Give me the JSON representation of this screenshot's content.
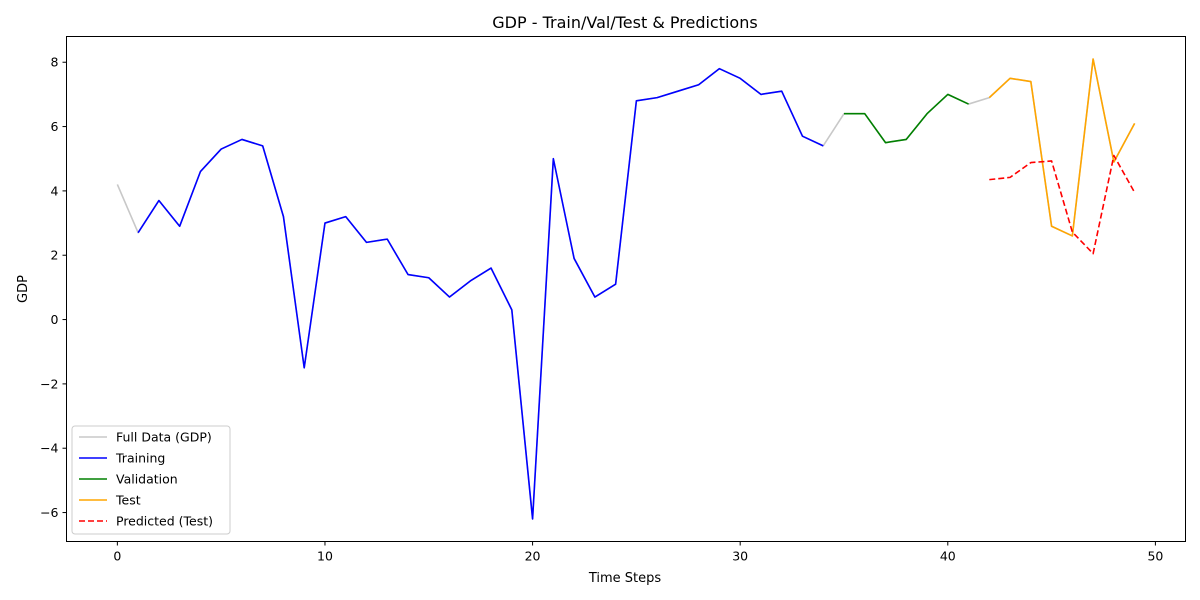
{
  "chart_data": {
    "type": "line",
    "title": "GDP - Train/Val/Test & Predictions",
    "xlabel": "Time Steps",
    "ylabel": "GDP",
    "xlim": [
      -2.45,
      51.45
    ],
    "ylim": [
      -6.9,
      8.8
    ],
    "xticks": [
      0,
      10,
      20,
      30,
      40,
      50
    ],
    "yticks": [
      -6,
      -4,
      -2,
      0,
      2,
      4,
      6,
      8
    ],
    "grid": false,
    "legend_position": "lower-left",
    "series": [
      {
        "name": "Full Data (GDP)",
        "color": "#c8c8c8",
        "dash": "solid",
        "x": [
          0,
          1,
          2,
          3,
          4,
          5,
          6,
          7,
          8,
          9,
          10,
          11,
          12,
          13,
          14,
          15,
          16,
          17,
          18,
          19,
          20,
          21,
          22,
          23,
          24,
          25,
          26,
          27,
          28,
          29,
          30,
          31,
          32,
          33,
          34,
          35,
          36,
          37,
          38,
          39,
          40,
          41,
          42,
          43,
          44,
          45,
          46,
          47,
          48,
          49
        ],
        "values": [
          4.2,
          2.7,
          3.7,
          2.9,
          4.6,
          5.3,
          5.6,
          5.4,
          3.2,
          -1.5,
          3.0,
          3.2,
          2.4,
          2.5,
          1.4,
          1.3,
          0.7,
          1.2,
          1.6,
          0.3,
          -6.2,
          5.0,
          1.9,
          0.7,
          1.1,
          6.8,
          6.9,
          7.1,
          7.3,
          7.8,
          7.5,
          7.0,
          7.1,
          5.7,
          5.4,
          6.4,
          6.4,
          5.5,
          5.6,
          6.4,
          7.0,
          6.7,
          6.9,
          7.5,
          7.4,
          2.9,
          2.6,
          8.1,
          4.9,
          6.1
        ]
      },
      {
        "name": "Training",
        "color": "#0000ff",
        "dash": "solid",
        "x": [
          1,
          2,
          3,
          4,
          5,
          6,
          7,
          8,
          9,
          10,
          11,
          12,
          13,
          14,
          15,
          16,
          17,
          18,
          19,
          20,
          21,
          22,
          23,
          24,
          25,
          26,
          27,
          28,
          29,
          30,
          31,
          32,
          33,
          34
        ],
        "values": [
          2.7,
          3.7,
          2.9,
          4.6,
          5.3,
          5.6,
          5.4,
          3.2,
          -1.5,
          3.0,
          3.2,
          2.4,
          2.5,
          1.4,
          1.3,
          0.7,
          1.2,
          1.6,
          0.3,
          -6.2,
          5.0,
          1.9,
          0.7,
          1.1,
          6.8,
          6.9,
          7.1,
          7.3,
          7.8,
          7.5,
          7.0,
          7.1,
          5.7,
          5.4
        ]
      },
      {
        "name": "Validation",
        "color": "#008000",
        "dash": "solid",
        "x": [
          35,
          36,
          37,
          38,
          39,
          40,
          41
        ],
        "values": [
          6.4,
          6.4,
          5.5,
          5.6,
          6.4,
          7.0,
          6.7
        ]
      },
      {
        "name": "Test",
        "color": "#ffa500",
        "dash": "solid",
        "x": [
          42,
          43,
          44,
          45,
          46,
          47,
          48,
          49
        ],
        "values": [
          6.9,
          7.5,
          7.4,
          2.9,
          2.6,
          8.1,
          4.9,
          6.1
        ]
      },
      {
        "name": "Predicted (Test)",
        "color": "#ff0000",
        "dash": "dashed",
        "x": [
          42,
          43,
          44,
          45,
          46,
          47,
          48,
          49
        ],
        "values": [
          4.35,
          4.42,
          4.88,
          4.93,
          2.72,
          2.05,
          5.1,
          3.95
        ]
      }
    ]
  }
}
